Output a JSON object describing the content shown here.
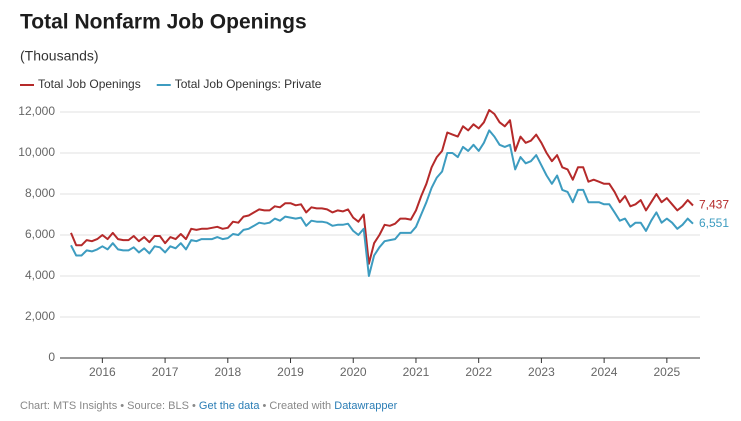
{
  "chart_data": {
    "type": "line",
    "title": "Total Nonfarm Job Openings",
    "subtitle": "(Thousands)",
    "xlim": [
      2015.5,
      2025.417
    ],
    "xticks": [
      2016,
      2017,
      2018,
      2019,
      2020,
      2021,
      2022,
      2023,
      2024,
      2025
    ],
    "ylim": [
      0,
      12000
    ],
    "yticks": [
      0,
      {
        "value": 2000,
        "label": "2,000"
      },
      {
        "value": 4000,
        "label": "4,000"
      },
      {
        "value": 6000,
        "label": "6,000"
      },
      {
        "value": 8000,
        "label": "8,000"
      },
      {
        "value": 10000,
        "label": "10,000"
      },
      {
        "value": 12000,
        "label": "12,000"
      }
    ],
    "grid": true,
    "legend": "top-left",
    "x": [
      2015.5,
      2015.583,
      2015.667,
      2015.75,
      2015.833,
      2015.917,
      2016,
      2016.083,
      2016.167,
      2016.25,
      2016.333,
      2016.417,
      2016.5,
      2016.583,
      2016.667,
      2016.75,
      2016.833,
      2016.917,
      2017,
      2017.083,
      2017.167,
      2017.25,
      2017.333,
      2017.417,
      2017.5,
      2017.583,
      2017.667,
      2017.75,
      2017.833,
      2017.917,
      2018,
      2018.083,
      2018.167,
      2018.25,
      2018.333,
      2018.417,
      2018.5,
      2018.583,
      2018.667,
      2018.75,
      2018.833,
      2018.917,
      2019,
      2019.083,
      2019.167,
      2019.25,
      2019.333,
      2019.417,
      2019.5,
      2019.583,
      2019.667,
      2019.75,
      2019.833,
      2019.917,
      2020,
      2020.083,
      2020.167,
      2020.25,
      2020.333,
      2020.417,
      2020.5,
      2020.583,
      2020.667,
      2020.75,
      2020.833,
      2020.917,
      2021,
      2021.083,
      2021.167,
      2021.25,
      2021.333,
      2021.417,
      2021.5,
      2021.583,
      2021.667,
      2021.75,
      2021.833,
      2021.917,
      2022,
      2022.083,
      2022.167,
      2022.25,
      2022.333,
      2022.417,
      2022.5,
      2022.583,
      2022.667,
      2022.75,
      2022.833,
      2022.917,
      2023,
      2023.083,
      2023.167,
      2023.25,
      2023.333,
      2023.417,
      2023.5,
      2023.583,
      2023.667,
      2023.75,
      2023.833,
      2023.917,
      2024,
      2024.083,
      2024.167,
      2024.25,
      2024.333,
      2024.417,
      2024.5,
      2024.583,
      2024.667,
      2024.75,
      2024.833,
      2024.917,
      2025,
      2025.083,
      2025.167,
      2025.25,
      2025.333,
      2025.417
    ],
    "series": [
      {
        "name": "Total Job Openings",
        "color": "#b52a2a",
        "end_label": "7,437",
        "values": [
          6100,
          5500,
          5500,
          5750,
          5700,
          5800,
          6000,
          5800,
          6100,
          5800,
          5750,
          5750,
          5950,
          5700,
          5900,
          5650,
          5950,
          5950,
          5600,
          5900,
          5800,
          6050,
          5800,
          6300,
          6250,
          6300,
          6300,
          6350,
          6400,
          6300,
          6350,
          6650,
          6600,
          6900,
          6950,
          7100,
          7250,
          7200,
          7200,
          7400,
          7350,
          7550,
          7550,
          7450,
          7500,
          7100,
          7350,
          7300,
          7300,
          7250,
          7100,
          7200,
          7150,
          7250,
          6850,
          6650,
          7000,
          4600,
          5600,
          6000,
          6500,
          6450,
          6550,
          6800,
          6800,
          6750,
          7200,
          7900,
          8500,
          9300,
          9800,
          10100,
          11000,
          10900,
          10800,
          11300,
          11100,
          11400,
          11200,
          11500,
          12100,
          11900,
          11500,
          11300,
          11600,
          10100,
          10800,
          10500,
          10600,
          10900,
          10500,
          10000,
          9600,
          9900,
          9300,
          9200,
          8700,
          9300,
          9300,
          8600,
          8700,
          8600,
          8500,
          8500,
          8100,
          7600,
          7900,
          7400,
          7500,
          7700,
          7200,
          7600,
          8000,
          7600,
          7800,
          7500,
          7200,
          7400,
          7700,
          7437
        ]
      },
      {
        "name": "Total Job Openings: Private",
        "color": "#3d9cc0",
        "end_label": "6,551",
        "values": [
          5500,
          5000,
          5000,
          5250,
          5200,
          5300,
          5450,
          5300,
          5600,
          5300,
          5250,
          5250,
          5400,
          5150,
          5350,
          5100,
          5450,
          5400,
          5150,
          5450,
          5350,
          5600,
          5300,
          5750,
          5700,
          5800,
          5800,
          5800,
          5900,
          5800,
          5850,
          6050,
          6000,
          6250,
          6300,
          6450,
          6600,
          6550,
          6600,
          6800,
          6700,
          6900,
          6850,
          6800,
          6850,
          6450,
          6700,
          6650,
          6650,
          6600,
          6450,
          6500,
          6500,
          6550,
          6200,
          6000,
          6300,
          4000,
          5000,
          5400,
          5700,
          5750,
          5800,
          6100,
          6100,
          6100,
          6400,
          7000,
          7600,
          8300,
          8800,
          9100,
          10000,
          10000,
          9800,
          10300,
          10100,
          10400,
          10100,
          10500,
          11100,
          10800,
          10400,
          10300,
          10400,
          9200,
          9800,
          9500,
          9600,
          9900,
          9400,
          8900,
          8500,
          8900,
          8200,
          8100,
          7600,
          8200,
          8200,
          7600,
          7600,
          7600,
          7500,
          7500,
          7100,
          6700,
          6800,
          6400,
          6600,
          6600,
          6200,
          6700,
          7100,
          6600,
          6800,
          6600,
          6300,
          6500,
          6800,
          6551
        ]
      }
    ],
    "footer": {
      "chart": "Chart: MTS Insights",
      "source": "Source: BLS",
      "get_data": "Get the data",
      "created": "Created with",
      "tool": "Datawrapper"
    }
  }
}
